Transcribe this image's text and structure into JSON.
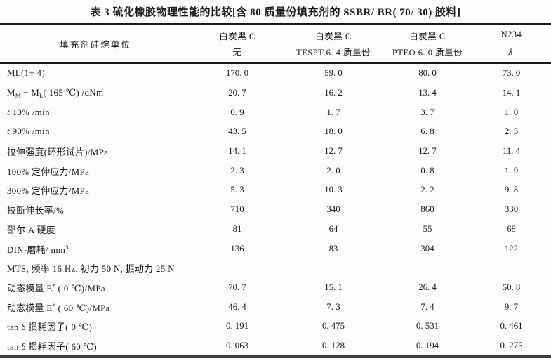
{
  "title": "表 3  硫化橡胶物理性能的比较[含 80 质量份填充剂的 SSBR/ BR( 70/ 30) 胶料]",
  "table": {
    "row_header": "填充剂硅烷单位",
    "columns": [
      {
        "line1": "白炭黑 C",
        "line2": "无"
      },
      {
        "line1": "白炭黑 C",
        "line2": "TESPT 6. 4 质量份"
      },
      {
        "line1": "白炭黑 C",
        "line2": "PTEO 6. 0 质量份"
      },
      {
        "line1": "N234",
        "line2": "无"
      }
    ],
    "rows": [
      {
        "label": "ML(1+ 4)",
        "values": [
          "170. 0",
          "59. 0",
          "80. 0",
          "73. 0"
        ]
      },
      {
        "label": "M~M~ −  M~L~( 165  ℃) /dNm",
        "values": [
          "20. 7",
          "16. 2",
          "13. 4",
          "14. 1"
        ]
      },
      {
        "label": "*t* 10% /min",
        "values": [
          "0. 9",
          "1. 7",
          "3. 7",
          "1. 0"
        ]
      },
      {
        "label": "*t* 90% /min",
        "values": [
          "43. 5",
          "18. 0",
          "6. 8",
          "2. 3"
        ]
      },
      {
        "label": "拉伸强度(环形试片)/MPa",
        "values": [
          "14. 1",
          "12. 7",
          "12. 7",
          "11. 4"
        ]
      },
      {
        "label": "100% 定伸应力/MPa",
        "values": [
          "2. 3",
          "2. 0",
          "0. 8",
          "1. 9"
        ]
      },
      {
        "label": "300% 定伸应力/MPa",
        "values": [
          "5. 3",
          "10. 3",
          "2. 2",
          "9. 8"
        ]
      },
      {
        "label": "拉断伸长率/%",
        "values": [
          "710",
          "340",
          "860",
          "330"
        ]
      },
      {
        "label": "邵尔 A 硬度",
        "values": [
          "81",
          "64",
          "55",
          "68"
        ]
      },
      {
        "label": "DIN-磨耗/ mm^3^",
        "values": [
          "136",
          "83",
          "304",
          "122"
        ]
      },
      {
        "label": "MTS, 频率 16 Hz, 初力 50 N, 振动力 25 N",
        "values": [
          "",
          "",
          "",
          ""
        ]
      },
      {
        "label": "动态模量 E^*^ ( 0  ℃)/MPa",
        "values": [
          "70. 7",
          "15. 1",
          "26. 4",
          "50. 8"
        ]
      },
      {
        "label": "动态模量 E^*^ ( 60  ℃)/MPa",
        "values": [
          "46. 4",
          "7. 3",
          "7. 4",
          "9. 7"
        ]
      },
      {
        "label": "tan δ 损耗因子( 0  ℃)",
        "values": [
          "0. 191",
          "0. 475",
          "0. 531",
          "0. 461"
        ]
      },
      {
        "label": "tan δ 损耗因子( 60  ℃)",
        "values": [
          "0. 063",
          "0. 128",
          "0. 194",
          "0. 275"
        ]
      }
    ]
  }
}
